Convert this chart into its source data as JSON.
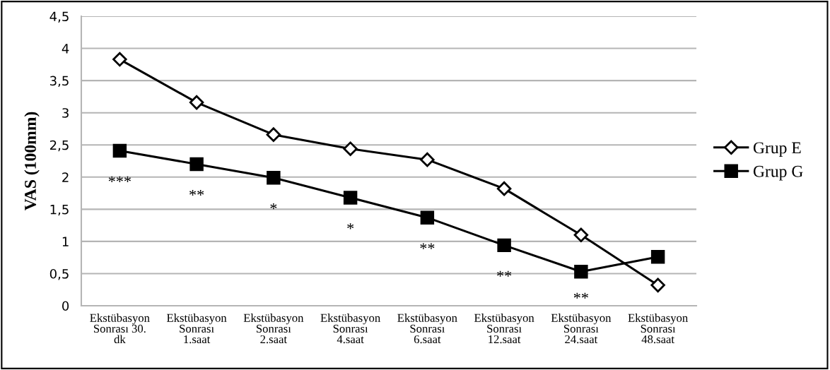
{
  "chart_data": {
    "type": "line",
    "ylabel": "VAS (100mm)",
    "categories": [
      "Ekstübasyon\nSonrası 30.\ndk",
      "Ekstübasyon\nSonrası\n1.saat",
      "Ekstübasyon\nSonrası\n2.saat",
      "Ekstübasyon\nSonrası\n4.saat",
      "Ekstübasyon\nSonrası\n6.saat",
      "Ekstübasyon\nSonrası\n12.saat",
      "Ekstübasyon\nSonrası\n24.saat",
      "Ekstübasyon\nSonrası\n48.saat"
    ],
    "series": [
      {
        "name": "Grup E",
        "color": "#000000",
        "marker": "diamond",
        "values": [
          3.83,
          3.16,
          2.66,
          2.44,
          2.27,
          1.82,
          1.1,
          0.32
        ]
      },
      {
        "name": "Grup G",
        "color": "#000000",
        "marker": "square",
        "values": [
          2.41,
          2.2,
          1.99,
          1.68,
          1.37,
          0.94,
          0.53,
          0.76
        ]
      }
    ],
    "ylim": [
      0,
      4.5
    ],
    "yticks": [
      {
        "value": 0,
        "label": "0"
      },
      {
        "value": 0.5,
        "label": "0,5"
      },
      {
        "value": 1,
        "label": "1"
      },
      {
        "value": 1.5,
        "label": "1,5"
      },
      {
        "value": 2,
        "label": "2"
      },
      {
        "value": 2.5,
        "label": "2,5"
      },
      {
        "value": 3,
        "label": "3"
      },
      {
        "value": 3.5,
        "label": "3,5"
      },
      {
        "value": 4,
        "label": "4"
      },
      {
        "value": 4.5,
        "label": "4,5"
      }
    ],
    "grid": "y",
    "legend": "right",
    "annotations": [
      "***",
      "**",
      "*",
      "*",
      "**",
      "**",
      "**"
    ]
  }
}
